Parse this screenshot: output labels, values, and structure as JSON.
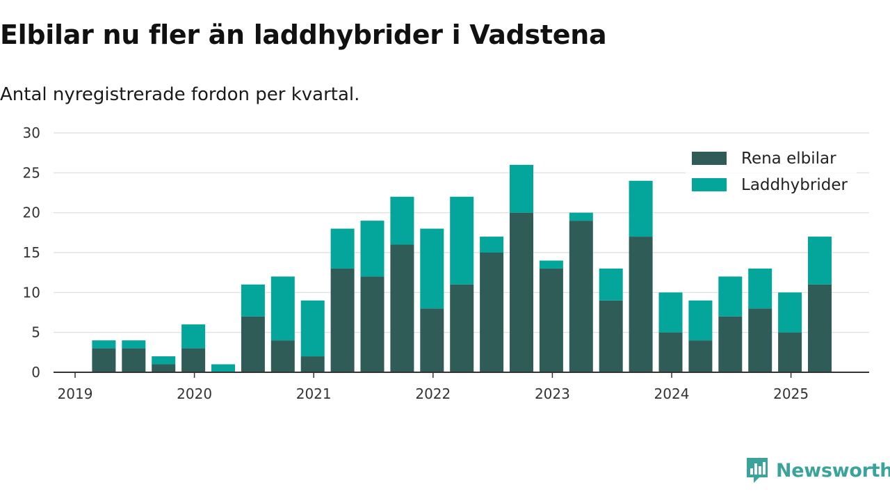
{
  "title": "Elbilar nu fler än laddhybrider i Vadstena",
  "subtitle": "Antal nyregistrerade fordon per kvartal.",
  "brand": {
    "name": "Newsworthy",
    "logo_icon": "newsworthy-bar-chart-logo"
  },
  "colors": {
    "electric": "#2f5c56",
    "hybrid": "#04a59b",
    "grid": "#dcdcdc",
    "axis": "#333333",
    "brand": "#3aa39a"
  },
  "chart_data": {
    "type": "bar",
    "stacked": true,
    "title": "Elbilar nu fler än laddhybrider i Vadstena",
    "subtitle": "Antal nyregistrerade fordon per kvartal.",
    "xlabel": "",
    "ylabel": "",
    "ylim": [
      0,
      30
    ],
    "yticks": [
      0,
      5,
      10,
      15,
      20,
      25,
      30
    ],
    "xtick_labels": [
      "2019",
      "2020",
      "2021",
      "2022",
      "2023",
      "2024",
      "2025"
    ],
    "grid": true,
    "legend_position": "top-right",
    "categories": [
      "2019 Q1",
      "2019 Q2",
      "2019 Q3",
      "2019 Q4",
      "2020 Q1",
      "2020 Q2",
      "2020 Q3",
      "2020 Q4",
      "2021 Q1",
      "2021 Q2",
      "2021 Q3",
      "2021 Q4",
      "2022 Q1",
      "2022 Q2",
      "2022 Q3",
      "2022 Q4",
      "2023 Q1",
      "2023 Q2",
      "2023 Q3",
      "2023 Q4",
      "2024 Q1",
      "2024 Q2",
      "2024 Q3",
      "2024 Q4",
      "2025 Q1",
      "2025 Q2"
    ],
    "series": [
      {
        "name": "Rena elbilar",
        "values": [
          0,
          3,
          3,
          1,
          3,
          0,
          7,
          4,
          2,
          13,
          12,
          16,
          8,
          11,
          15,
          20,
          13,
          19,
          9,
          17,
          5,
          4,
          7,
          8,
          5,
          11
        ]
      },
      {
        "name": "Laddhybrider",
        "values": [
          0,
          1,
          1,
          1,
          3,
          1,
          4,
          8,
          7,
          5,
          7,
          6,
          10,
          11,
          2,
          6,
          1,
          1,
          4,
          7,
          5,
          5,
          5,
          5,
          5,
          6
        ]
      }
    ]
  }
}
